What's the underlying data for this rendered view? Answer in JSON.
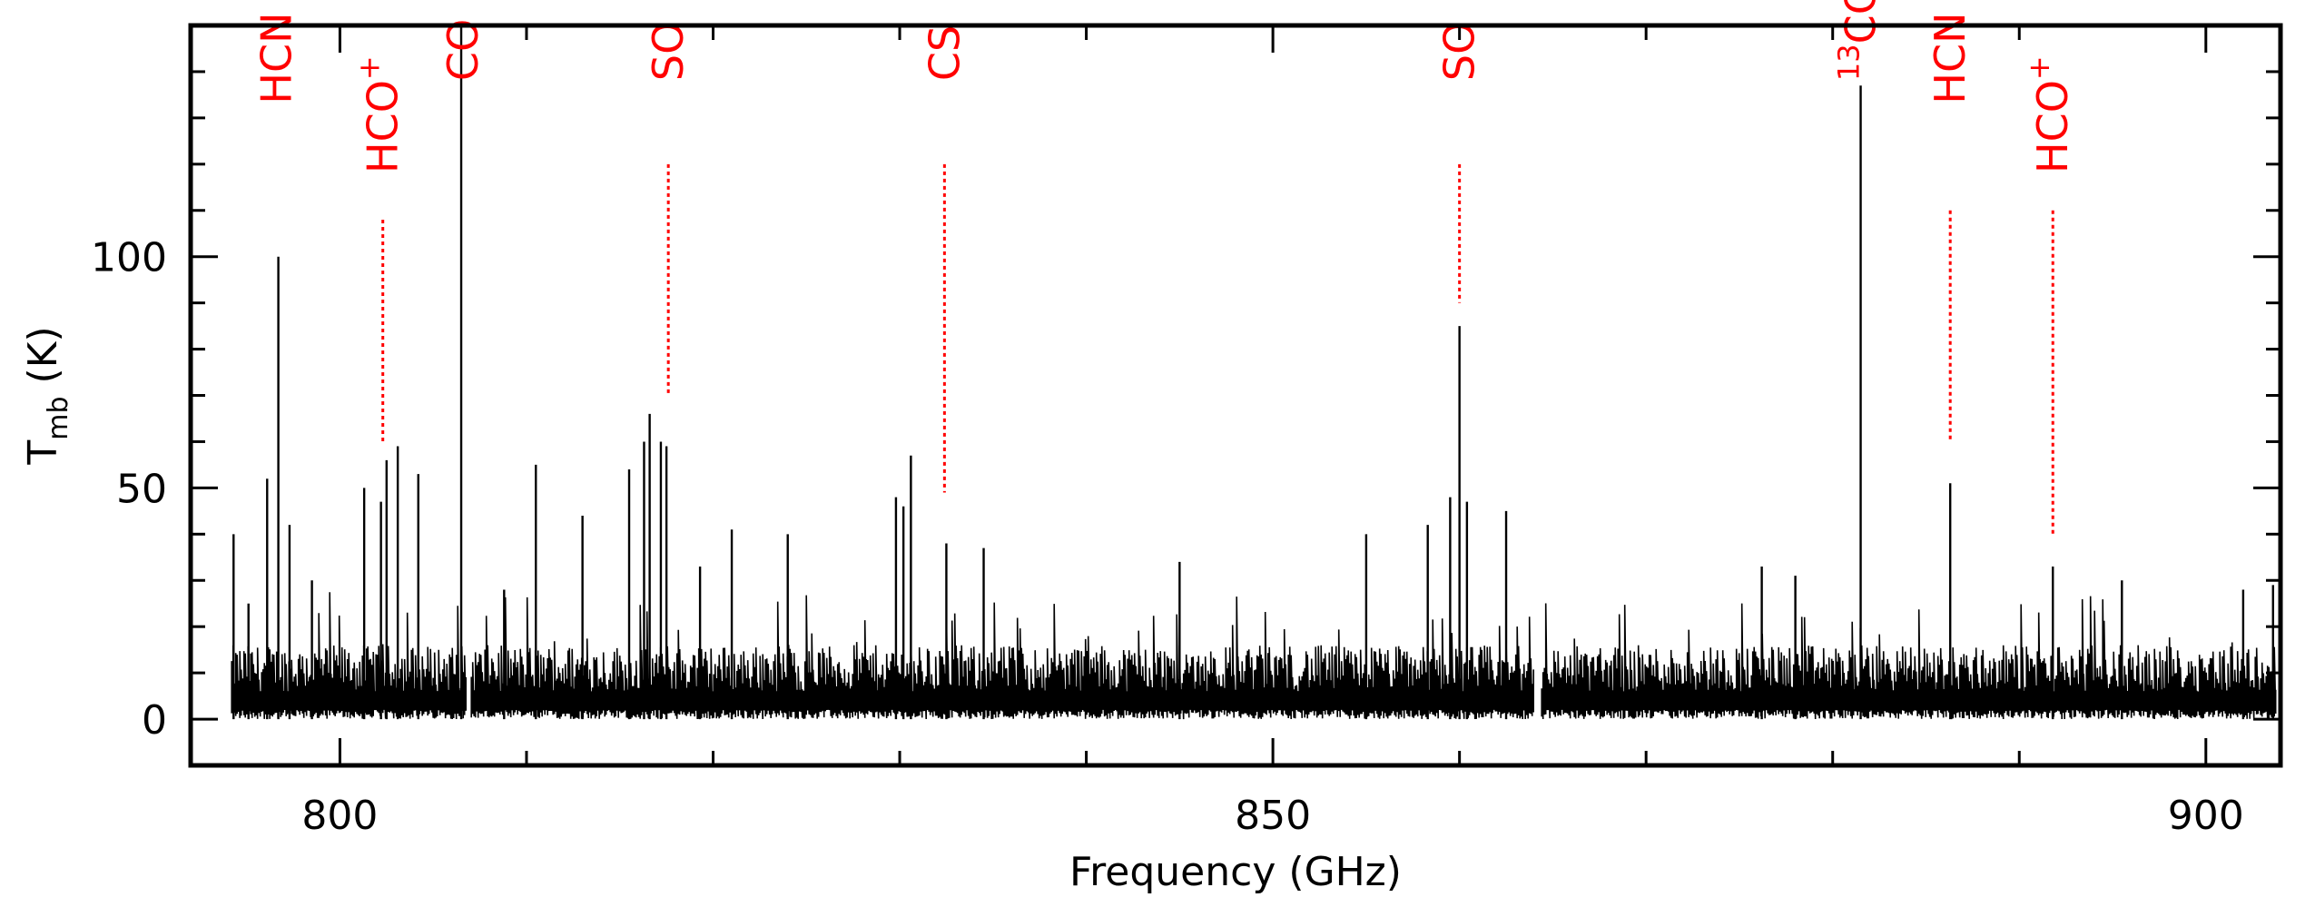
{
  "chart_data": {
    "type": "line",
    "xlabel": "Frequency (GHz)",
    "ylabel": {
      "main": "T",
      "sub": "mb",
      "unit": " (K)"
    },
    "xlim": [
      792,
      904
    ],
    "ylim": [
      -10,
      150
    ],
    "xticks": [
      {
        "value": 800,
        "label": "800"
      },
      {
        "value": 850,
        "label": "850"
      },
      {
        "value": 900,
        "label": "900"
      }
    ],
    "yticks": [
      {
        "value": 0,
        "label": "0"
      },
      {
        "value": 50,
        "label": "50"
      },
      {
        "value": 100,
        "label": "100"
      }
    ],
    "grid": false,
    "colors": {
      "spectrum": "#000000",
      "labels": "#ff0000"
    },
    "spectrum": {
      "x_range": [
        794.2,
        903.8
      ],
      "gaps": [
        [
          806.8,
          807.0
        ],
        [
          864.0,
          864.4
        ]
      ],
      "peaks": [
        {
          "x": 794.3,
          "y": 40
        },
        {
          "x": 795.1,
          "y": 25
        },
        {
          "x": 796.1,
          "y": 52
        },
        {
          "x": 796.7,
          "y": 100
        },
        {
          "x": 797.3,
          "y": 42
        },
        {
          "x": 798.5,
          "y": 30
        },
        {
          "x": 801.3,
          "y": 50
        },
        {
          "x": 802.2,
          "y": 47
        },
        {
          "x": 802.5,
          "y": 56
        },
        {
          "x": 803.1,
          "y": 59
        },
        {
          "x": 804.2,
          "y": 53
        },
        {
          "x": 806.5,
          "y": 150
        },
        {
          "x": 808.8,
          "y": 28
        },
        {
          "x": 810.5,
          "y": 55
        },
        {
          "x": 813.0,
          "y": 44
        },
        {
          "x": 815.5,
          "y": 54
        },
        {
          "x": 816.3,
          "y": 60
        },
        {
          "x": 816.6,
          "y": 66
        },
        {
          "x": 817.2,
          "y": 60
        },
        {
          "x": 817.5,
          "y": 59
        },
        {
          "x": 819.3,
          "y": 33
        },
        {
          "x": 821.0,
          "y": 41
        },
        {
          "x": 824.0,
          "y": 40
        },
        {
          "x": 829.8,
          "y": 48
        },
        {
          "x": 830.2,
          "y": 46
        },
        {
          "x": 830.6,
          "y": 57
        },
        {
          "x": 832.5,
          "y": 38
        },
        {
          "x": 834.5,
          "y": 37
        },
        {
          "x": 845.0,
          "y": 34
        },
        {
          "x": 855.0,
          "y": 40
        },
        {
          "x": 858.3,
          "y": 42
        },
        {
          "x": 859.5,
          "y": 48
        },
        {
          "x": 860.0,
          "y": 85
        },
        {
          "x": 860.4,
          "y": 47
        },
        {
          "x": 862.5,
          "y": 45
        },
        {
          "x": 876.2,
          "y": 33
        },
        {
          "x": 878.0,
          "y": 31
        },
        {
          "x": 881.5,
          "y": 137
        },
        {
          "x": 886.3,
          "y": 51
        },
        {
          "x": 891.8,
          "y": 33
        },
        {
          "x": 895.5,
          "y": 30
        },
        {
          "x": 902.0,
          "y": 28
        },
        {
          "x": 903.6,
          "y": 29
        }
      ]
    },
    "line_markers": [
      {
        "name": "HCN",
        "sup": "",
        "pre": "",
        "x": 796.6,
        "label_y": 133,
        "dot_top": null,
        "dot_bottom": null
      },
      {
        "name": "HCO",
        "sup": "+",
        "pre": "",
        "x": 802.3,
        "label_y": 118,
        "dot_top": 108,
        "dot_bottom": 60
      },
      {
        "name": "CO",
        "sup": "",
        "pre": "",
        "x": 806.6,
        "label_y": 138,
        "dot_top": null,
        "dot_bottom": null
      },
      {
        "name": "SO",
        "sup": "",
        "pre": "",
        "x": 817.6,
        "label_y": 138,
        "dot_top": 120,
        "dot_bottom": 70
      },
      {
        "name": "CS",
        "sup": "",
        "pre": "",
        "x": 832.4,
        "label_y": 138,
        "dot_top": 120,
        "dot_bottom": 49
      },
      {
        "name": "SO",
        "sup": "",
        "pre": "",
        "x": 860.0,
        "label_y": 138,
        "dot_top": 120,
        "dot_bottom": 90
      },
      {
        "name": "CO",
        "sup": "",
        "pre": "13",
        "x": 881.5,
        "label_y": 138,
        "dot_top": null,
        "dot_bottom": null
      },
      {
        "name": "HCN",
        "sup": "",
        "pre": "",
        "x": 886.3,
        "label_y": 133,
        "dot_top": 110,
        "dot_bottom": 60
      },
      {
        "name": "HCO",
        "sup": "+",
        "pre": "",
        "x": 891.8,
        "label_y": 118,
        "dot_top": 110,
        "dot_bottom": 40
      }
    ]
  }
}
